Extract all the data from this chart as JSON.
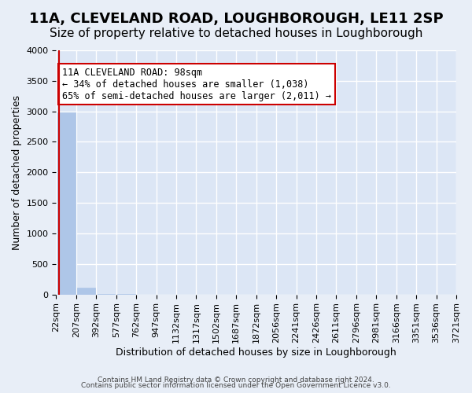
{
  "title": "11A, CLEVELAND ROAD, LOUGHBOROUGH, LE11 2SP",
  "subtitle": "Size of property relative to detached houses in Loughborough",
  "xlabel": "Distribution of detached houses by size in Loughborough",
  "ylabel": "Number of detached properties",
  "footnote1": "Contains HM Land Registry data © Crown copyright and database right 2024.",
  "footnote2": "Contains public sector information licensed under the Open Government Licence v3.0.",
  "bar_color": "#aec6e8",
  "annotation_box_color": "#cc0000",
  "property_label": "11A CLEVELAND ROAD: 98sqm",
  "pct_smaller": "34% of detached houses are smaller (1,038)",
  "pct_larger": "65% of semi-detached houses are larger (2,011)",
  "vline_bar_index": 0,
  "bin_labels": [
    "22sqm",
    "207sqm",
    "392sqm",
    "577sqm",
    "762sqm",
    "947sqm",
    "1132sqm",
    "1317sqm",
    "1502sqm",
    "1687sqm",
    "1872sqm",
    "2056sqm",
    "2241sqm",
    "2426sqm",
    "2611sqm",
    "2796sqm",
    "2981sqm",
    "3166sqm",
    "3351sqm",
    "3536sqm",
    "3721sqm"
  ],
  "bar_heights": [
    2980,
    110,
    5,
    2,
    1,
    1,
    1,
    0,
    1,
    0,
    0,
    0,
    0,
    0,
    0,
    0,
    0,
    0,
    0,
    0
  ],
  "ylim": [
    0,
    4000
  ],
  "yticks": [
    0,
    500,
    1000,
    1500,
    2000,
    2500,
    3000,
    3500,
    4000
  ],
  "bg_color": "#e8eef7",
  "plot_bg_color": "#dce6f5",
  "grid_color": "#ffffff",
  "title_fontsize": 13,
  "subtitle_fontsize": 11,
  "axis_label_fontsize": 9,
  "tick_fontsize": 8,
  "annotation_fontsize": 8.5
}
